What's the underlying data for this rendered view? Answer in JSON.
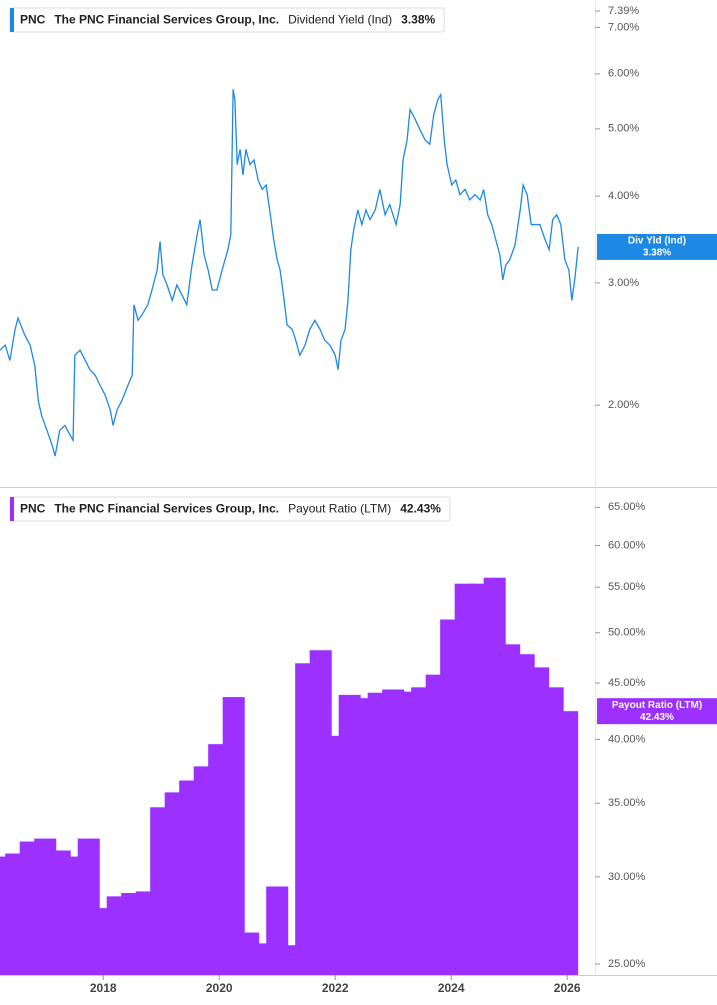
{
  "chart_data": [
    {
      "type": "line",
      "ticker": "PNC",
      "company": "The PNC Financial Services Group, Inc.",
      "title": "Dividend Yield (Ind)",
      "current": "3.38%",
      "tag_name": "Div Yld (Ind)",
      "color": "#1e88e5",
      "log_scale": true,
      "xlim": [
        2016.22,
        2026.48
      ],
      "ylim": [
        1.54,
        7.39
      ],
      "yticks": [
        {
          "value": 2,
          "label": "2.00%"
        },
        {
          "value": 3,
          "label": "3.00%"
        },
        {
          "value": 4,
          "label": "4.00%"
        },
        {
          "value": 5,
          "label": "5.00%"
        },
        {
          "value": 6,
          "label": "6.00%"
        },
        {
          "value": 7,
          "label": "7.00%"
        },
        {
          "value": 7.39,
          "label": "7.39%"
        }
      ],
      "x": [
        2016.22,
        2016.31,
        2016.39,
        2016.48,
        2016.53,
        2016.65,
        2016.74,
        2016.82,
        2016.88,
        2016.94,
        2017.03,
        2017.12,
        2017.17,
        2017.25,
        2017.34,
        2017.43,
        2017.48,
        2017.51,
        2017.6,
        2017.69,
        2017.77,
        2017.86,
        2017.94,
        2018.03,
        2018.12,
        2018.17,
        2018.24,
        2018.32,
        2018.43,
        2018.5,
        2018.53,
        2018.6,
        2018.67,
        2018.77,
        2018.84,
        2018.93,
        2018.98,
        2019.03,
        2019.1,
        2019.19,
        2019.27,
        2019.36,
        2019.44,
        2019.53,
        2019.62,
        2019.67,
        2019.74,
        2019.81,
        2019.88,
        2019.96,
        2020.05,
        2020.15,
        2020.2,
        2020.24,
        2020.27,
        2020.31,
        2020.36,
        2020.41,
        2020.46,
        2020.53,
        2020.6,
        2020.67,
        2020.74,
        2020.81,
        2020.87,
        2020.94,
        2021.0,
        2021.05,
        2021.12,
        2021.17,
        2021.26,
        2021.32,
        2021.39,
        2021.48,
        2021.56,
        2021.65,
        2021.74,
        2021.82,
        2021.91,
        2022.0,
        2022.05,
        2022.1,
        2022.17,
        2022.22,
        2022.27,
        2022.32,
        2022.39,
        2022.46,
        2022.53,
        2022.6,
        2022.69,
        2022.77,
        2022.86,
        2022.94,
        2023.05,
        2023.12,
        2023.17,
        2023.24,
        2023.29,
        2023.38,
        2023.46,
        2023.55,
        2023.63,
        2023.7,
        2023.77,
        2023.82,
        2023.88,
        2023.93,
        2024.01,
        2024.08,
        2024.15,
        2024.24,
        2024.32,
        2024.41,
        2024.5,
        2024.56,
        2024.63,
        2024.7,
        2024.77,
        2024.84,
        2024.89,
        2024.94,
        2025.01,
        2025.1,
        2025.19,
        2025.24,
        2025.31,
        2025.38,
        2025.44,
        2025.53,
        2025.62,
        2025.69,
        2025.75,
        2025.82,
        2025.89,
        2025.96,
        2026.03,
        2026.08,
        2026.13,
        2026.19
      ],
      "values": [
        2.4,
        2.44,
        2.32,
        2.57,
        2.67,
        2.52,
        2.44,
        2.28,
        2.03,
        1.93,
        1.84,
        1.75,
        1.69,
        1.84,
        1.87,
        1.81,
        1.78,
        2.36,
        2.4,
        2.32,
        2.25,
        2.21,
        2.14,
        2.07,
        1.97,
        1.87,
        1.97,
        2.03,
        2.14,
        2.21,
        2.79,
        2.65,
        2.7,
        2.79,
        2.93,
        3.13,
        3.44,
        3.08,
        2.98,
        2.83,
        2.98,
        2.88,
        2.79,
        3.18,
        3.52,
        3.7,
        3.29,
        3.13,
        2.93,
        2.93,
        3.13,
        3.35,
        3.52,
        5.7,
        5.51,
        4.44,
        4.67,
        4.29,
        4.67,
        4.44,
        4.51,
        4.22,
        4.09,
        4.15,
        3.82,
        3.46,
        3.24,
        3.13,
        2.83,
        2.61,
        2.57,
        2.48,
        2.36,
        2.44,
        2.57,
        2.65,
        2.57,
        2.48,
        2.44,
        2.36,
        2.25,
        2.48,
        2.57,
        2.83,
        3.35,
        3.58,
        3.82,
        3.64,
        3.82,
        3.7,
        3.82,
        4.09,
        3.76,
        3.89,
        3.64,
        3.89,
        4.51,
        4.82,
        5.33,
        5.16,
        4.99,
        4.82,
        4.75,
        5.24,
        5.51,
        5.6,
        4.82,
        4.44,
        4.15,
        4.22,
        4.02,
        4.09,
        3.95,
        4.02,
        3.95,
        4.09,
        3.76,
        3.64,
        3.46,
        3.29,
        3.03,
        3.18,
        3.24,
        3.4,
        3.82,
        4.15,
        4.02,
        3.64,
        3.64,
        3.64,
        3.46,
        3.35,
        3.7,
        3.76,
        3.64,
        3.24,
        3.13,
        2.83,
        3.03,
        3.38
      ]
    },
    {
      "type": "bar",
      "ticker": "PNC",
      "company": "The PNC Financial Services Group, Inc.",
      "title": "Payout Ratio (LTM)",
      "current": "42.43%",
      "color": "#9b30ff",
      "log_scale": true,
      "xlim": [
        2016.22,
        2026.48
      ],
      "ylim": [
        24.43,
        67.4
      ],
      "xticks": [
        2018,
        2020,
        2022,
        2024,
        2026
      ],
      "yticks": [
        {
          "value": 25,
          "label": "25.00%"
        },
        {
          "value": 30,
          "label": "30.00%"
        },
        {
          "value": 35,
          "label": "35.00%"
        },
        {
          "value": 40,
          "label": "40.00%"
        },
        {
          "value": 45,
          "label": "45.00%"
        },
        {
          "value": 50,
          "label": "50.00%"
        },
        {
          "value": 55,
          "label": "55.00%"
        },
        {
          "value": 60,
          "label": "60.00%"
        },
        {
          "value": 65,
          "label": "65.00%"
        }
      ],
      "x": [
        2016.25,
        2016.5,
        2016.75,
        2017.0,
        2017.25,
        2017.5,
        2017.75,
        2018.0,
        2018.25,
        2018.5,
        2018.75,
        2019.0,
        2019.25,
        2019.5,
        2019.75,
        2020.0,
        2020.25,
        2020.5,
        2020.75,
        2021.0,
        2021.25,
        2021.5,
        2021.75,
        2022.0,
        2022.25,
        2022.5,
        2022.75,
        2023.0,
        2023.25,
        2023.5,
        2023.75,
        2024.0,
        2024.25,
        2024.5,
        2024.75,
        2025.0,
        2025.25,
        2025.5,
        2025.75,
        2026.0
      ],
      "values": [
        31.3,
        31.5,
        32.3,
        32.5,
        31.7,
        31.3,
        32.5,
        28.1,
        28.8,
        29.0,
        29.1,
        34.7,
        35.8,
        36.7,
        37.8,
        39.6,
        43.7,
        26.7,
        26.1,
        29.4,
        26.0,
        46.9,
        48.2,
        40.3,
        43.9,
        43.6,
        44.1,
        44.4,
        44.2,
        44.6,
        45.8,
        51.4,
        55.4,
        55.4,
        56.1,
        48.8,
        47.8,
        46.5,
        44.6,
        42.43
      ]
    }
  ]
}
